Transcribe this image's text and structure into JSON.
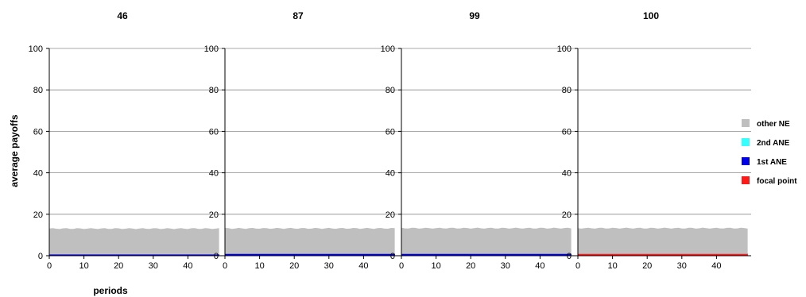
{
  "chart_data": {
    "type": "area",
    "ylabel": "average payoffs",
    "xlabel": "periods",
    "ylim": [
      0,
      100
    ],
    "yticks": [
      0,
      20,
      40,
      60,
      80,
      100
    ],
    "xlim": [
      0,
      50
    ],
    "xticks": [
      0,
      10,
      20,
      30,
      40
    ],
    "grid": true,
    "legend_position": "right",
    "legend": [
      {
        "name": "other NE",
        "color": "#bfbfbf"
      },
      {
        "name": "2nd ANE",
        "color": "#33ffff"
      },
      {
        "name": "1st ANE",
        "color": "#0000e6"
      },
      {
        "name": "focal point",
        "color": "#ff1a1a"
      }
    ],
    "panels": [
      {
        "title": "46",
        "stack": {
          "focal point": 0.0,
          "1st ANE": 0.6,
          "2nd ANE": 0.0,
          "other NE": 12.5
        }
      },
      {
        "title": "87",
        "stack": {
          "focal point": 0.0,
          "1st ANE": 0.9,
          "2nd ANE": 0.0,
          "other NE": 12.3
        }
      },
      {
        "title": "99",
        "stack": {
          "focal point": 0.0,
          "1st ANE": 0.9,
          "2nd ANE": 0.0,
          "other NE": 12.4
        }
      },
      {
        "title": "100",
        "stack": {
          "focal point": 0.9,
          "1st ANE": 0.0,
          "2nd ANE": 0.0,
          "other NE": 12.4
        }
      }
    ]
  }
}
